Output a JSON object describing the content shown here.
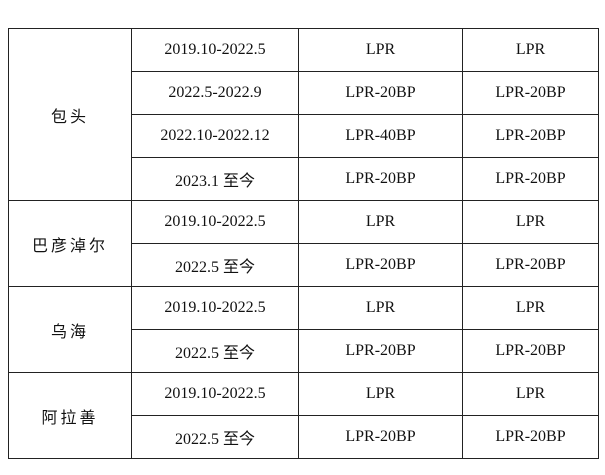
{
  "table": {
    "groups": [
      {
        "region": "包头",
        "rows": [
          [
            "2019.10-2022.5",
            "LPR",
            "LPR"
          ],
          [
            "2022.5-2022.9",
            "LPR-20BP",
            "LPR-20BP"
          ],
          [
            "2022.10-2022.12",
            "LPR-40BP",
            "LPR-20BP"
          ],
          [
            "2023.1 至今",
            "LPR-20BP",
            "LPR-20BP"
          ]
        ]
      },
      {
        "region": "巴彦淖尔",
        "rows": [
          [
            "2019.10-2022.5",
            "LPR",
            "LPR"
          ],
          [
            "2022.5 至今",
            "LPR-20BP",
            "LPR-20BP"
          ]
        ]
      },
      {
        "region": "乌海",
        "rows": [
          [
            "2019.10-2022.5",
            "LPR",
            "LPR"
          ],
          [
            "2022.5 至今",
            "LPR-20BP",
            "LPR-20BP"
          ]
        ]
      },
      {
        "region": "阿拉善",
        "rows": [
          [
            "2019.10-2022.5",
            "LPR",
            "LPR"
          ],
          [
            "2022.5 至今",
            "LPR-20BP",
            "LPR-20BP"
          ]
        ]
      }
    ]
  }
}
